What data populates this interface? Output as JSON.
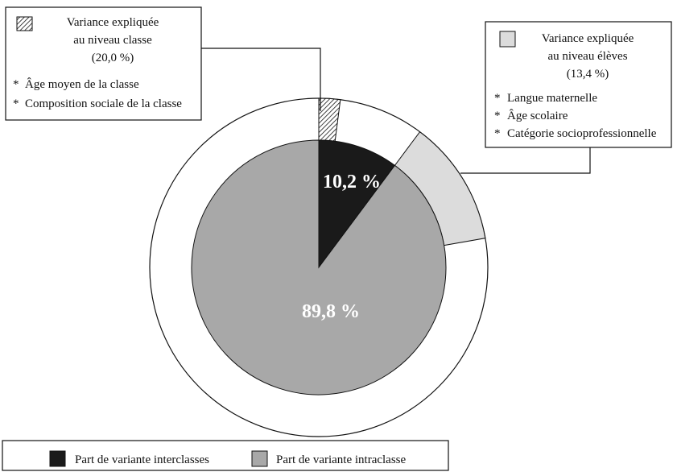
{
  "chart_data": {
    "type": "pie",
    "inner": {
      "slices": [
        {
          "label": "10,2 %",
          "value": 10.2,
          "color": "#1a1a1a",
          "text_color": "#ffffff"
        },
        {
          "label": "89,8 %",
          "value": 89.8,
          "color": "#a8a8a8",
          "text_color": "#ffffff"
        }
      ]
    },
    "outer": {
      "slices": [
        {
          "value": 20.0,
          "of": 10.2,
          "pattern": "hatch",
          "color": "#ffffff"
        },
        {
          "value": 13.4,
          "of": 89.8,
          "pattern": "solid",
          "color": "#dcdcdc"
        }
      ]
    },
    "callouts": {
      "classe": {
        "title": [
          "Variance expliquée",
          "au niveau classe",
          "(20,0 %)"
        ],
        "items": [
          "Âge moyen de la classe",
          "Composition sociale de la classe"
        ]
      },
      "eleves": {
        "title": [
          "Variance expliquée",
          "au niveau élèves",
          "(13,4 %)"
        ],
        "items": [
          "Langue maternelle",
          "Âge scolaire",
          "Catégorie socioprofessionnelle"
        ]
      }
    },
    "bullet": "*",
    "legend": [
      {
        "label": "Part de variante interclasses",
        "color": "#1a1a1a"
      },
      {
        "label": "Part de variante intraclasse",
        "color": "#a8a8a8"
      }
    ]
  }
}
